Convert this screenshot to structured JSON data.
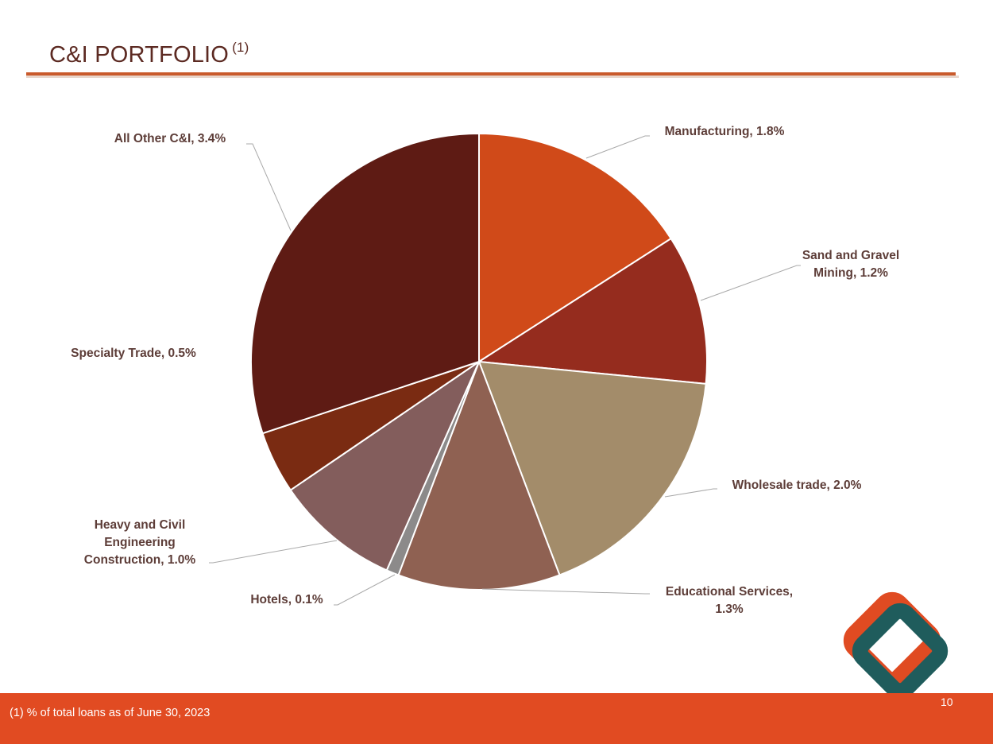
{
  "header": {
    "title": "C&I PORTFOLIO",
    "title_note": "(1)"
  },
  "footer": {
    "footnote": "(1)  % of total loans as of June 30, 2023",
    "page_number": "10"
  },
  "logo": {
    "name": "diamond-logo-icon",
    "colors": [
      "#e04b22",
      "#1f5c5c"
    ]
  },
  "chart_data": {
    "type": "pie",
    "title": "",
    "start": "12 o'clock, clockwise",
    "slices": [
      {
        "label": "Manufacturing, 1.8%",
        "name": "Manufacturing",
        "value": 1.8,
        "color": "#d04a19"
      },
      {
        "label": "Sand and Gravel Mining, 1.2%",
        "name": "Sand and Gravel Mining",
        "value": 1.2,
        "color": "#952c1e"
      },
      {
        "label": "Wholesale trade, 2.0%",
        "name": "Wholesale trade",
        "value": 2.0,
        "color": "#a38c6a"
      },
      {
        "label": "Educational Services, 1.3%",
        "name": "Educational Services",
        "value": 1.3,
        "color": "#8f6152"
      },
      {
        "label": "Hotels, 0.1%",
        "name": "Hotels",
        "value": 0.1,
        "color": "#8c8a8a"
      },
      {
        "label": "Heavy and Civil Engineering Construction, 1.0%",
        "name": "Heavy and Civil Engineering Construction",
        "value": 1.0,
        "color": "#835d5c"
      },
      {
        "label": "Specialty Trade, 0.5%",
        "name": "Specialty Trade",
        "value": 0.5,
        "color": "#7a2b12"
      },
      {
        "label": "All Other C&I, 3.4%",
        "name": "All Other C&I",
        "value": 3.4,
        "color": "#5e1b14"
      }
    ]
  }
}
